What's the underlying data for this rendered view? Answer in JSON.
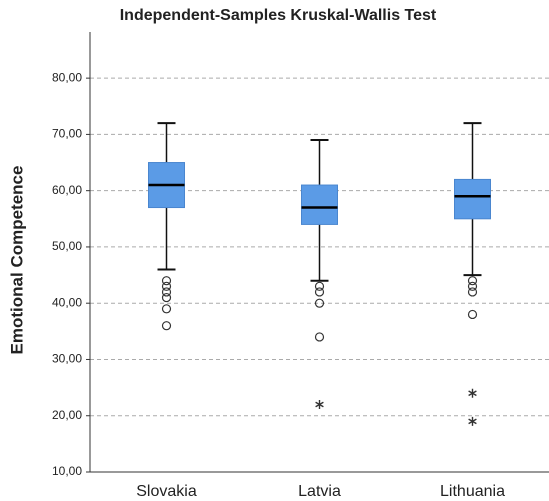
{
  "chart_data": {
    "type": "box",
    "title": "Independent-Samples Kruskal-Wallis Test",
    "y_label": "Emotional Competence",
    "categories": [
      "Slovakia",
      "Latvia",
      "Lithuania"
    ],
    "color": "#5b9be6",
    "boxes": [
      {
        "min": 46,
        "q1": 57,
        "median": 61,
        "q3": 65,
        "max": 72,
        "outliers": [
          44,
          43,
          42,
          41,
          39,
          36
        ],
        "extremes": []
      },
      {
        "min": 44,
        "q1": 54,
        "median": 57,
        "q3": 61,
        "max": 69,
        "outliers": [
          43,
          42,
          40,
          34
        ],
        "extremes": [
          22
        ]
      },
      {
        "min": 45,
        "q1": 55,
        "median": 59,
        "q3": 62,
        "max": 72,
        "outliers": [
          44,
          43,
          42,
          38
        ],
        "extremes": [
          24,
          19
        ]
      }
    ],
    "ylim": [
      10,
      88.2
    ],
    "yticks": [
      {
        "value": 10,
        "label": "10,00"
      },
      {
        "value": 20,
        "label": "20,00"
      },
      {
        "value": 30,
        "label": "30,00"
      },
      {
        "value": 40,
        "label": "40,00"
      },
      {
        "value": 50,
        "label": "50,00"
      },
      {
        "value": 60,
        "label": "60,00"
      },
      {
        "value": 70,
        "label": "70,00"
      },
      {
        "value": 80,
        "label": "80,00"
      }
    ],
    "grid": true
  }
}
